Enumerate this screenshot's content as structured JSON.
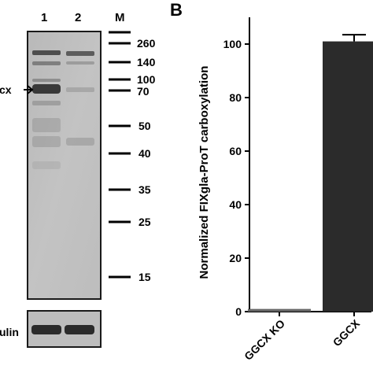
{
  "panel_a": {
    "lane_labels": [
      "1",
      "2",
      "M"
    ],
    "marker_labels": [
      "260",
      "140",
      "100",
      "70",
      "50",
      "40",
      "35",
      "25",
      "15"
    ],
    "arrow_label_partial": "cx",
    "loading_control_partial": "ulin"
  },
  "panel_b": {
    "letter": "B"
  },
  "chart_data": {
    "type": "bar",
    "categories": [
      "GGCX KO",
      "GGCX"
    ],
    "values": [
      1,
      101
    ],
    "error": [
      0,
      2.5
    ],
    "ylabel": "Normalized FIXgla-ProT carboxylation",
    "xlabel": "",
    "ylim": [
      0,
      110
    ],
    "yticks": [
      0,
      20,
      40,
      60,
      80,
      100
    ],
    "bar_color": "#2b2b2b",
    "grid": false
  }
}
